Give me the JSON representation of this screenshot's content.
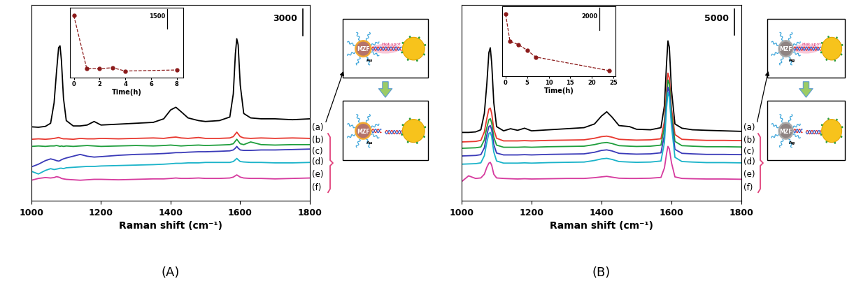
{
  "chart_data": [
    {
      "type": "line",
      "panel_label": "(A)",
      "x_label": "Raman shift (cm⁻¹)",
      "x": [
        1000,
        1020,
        1040,
        1055,
        1065,
        1072,
        1078,
        1082,
        1086,
        1092,
        1100,
        1120,
        1140,
        1160,
        1180,
        1200,
        1250,
        1300,
        1350,
        1380,
        1400,
        1415,
        1430,
        1450,
        1480,
        1500,
        1540,
        1570,
        1580,
        1586,
        1590,
        1594,
        1600,
        1610,
        1630,
        1660,
        1700,
        1750,
        1800
      ],
      "xlim": [
        1000,
        1800
      ],
      "xticks": [
        1000,
        1200,
        1400,
        1600,
        1800
      ],
      "ylim": [
        0,
        22000
      ],
      "tick_labels": "x",
      "scale_bar": 3000,
      "series": [
        {
          "name": "(a)",
          "color": "#000000",
          "values": [
            8300,
            8250,
            8350,
            8700,
            11000,
            14500,
            17200,
            17400,
            15800,
            11500,
            9000,
            8400,
            8400,
            8500,
            8900,
            8500,
            8600,
            8700,
            8800,
            9200,
            10200,
            10500,
            10000,
            9300,
            9000,
            8900,
            9000,
            9400,
            12000,
            16500,
            18200,
            17500,
            13000,
            9800,
            9300,
            9200,
            9200,
            9100,
            9200
          ]
        },
        {
          "name": "(b)",
          "color": "#e8382f",
          "values": [
            6900,
            6950,
            6900,
            6950,
            7000,
            7050,
            7100,
            7050,
            7000,
            6950,
            6950,
            6900,
            7000,
            6950,
            6950,
            7000,
            6950,
            7000,
            7050,
            7000,
            7100,
            7150,
            7050,
            7000,
            7100,
            7000,
            7000,
            7050,
            7200,
            7500,
            7700,
            7500,
            7200,
            7050,
            7000,
            7050,
            7000,
            7050,
            7000
          ]
        },
        {
          "name": "(c)",
          "color": "#1e9e3c",
          "values": [
            6100,
            6150,
            6100,
            6150,
            6150,
            6200,
            6150,
            6100,
            6150,
            6100,
            6150,
            6100,
            6150,
            6200,
            6150,
            6100,
            6150,
            6200,
            6150,
            6200,
            6250,
            6200,
            6150,
            6200,
            6250,
            6200,
            6250,
            6300,
            6400,
            6700,
            6900,
            6700,
            6400,
            6300,
            6600,
            6300,
            6250,
            6300,
            6300
          ]
        },
        {
          "name": "(d)",
          "color": "#3a3ab8",
          "values": [
            3800,
            4100,
            4500,
            4700,
            4600,
            4500,
            4450,
            4500,
            4600,
            4700,
            4800,
            5000,
            5200,
            5000,
            4900,
            4950,
            5100,
            5200,
            5250,
            5300,
            5350,
            5400,
            5400,
            5450,
            5500,
            5500,
            5550,
            5600,
            5700,
            5900,
            6100,
            5900,
            5700,
            5650,
            5650,
            5700,
            5700,
            5750,
            5800
          ]
        },
        {
          "name": "(e)",
          "color": "#1ab3c9",
          "values": [
            3300,
            3000,
            3400,
            3600,
            3500,
            3550,
            3600,
            3650,
            3650,
            3600,
            3700,
            3750,
            3800,
            3850,
            3850,
            3900,
            3950,
            4000,
            4050,
            4100,
            4150,
            4200,
            4200,
            4250,
            4250,
            4300,
            4300,
            4300,
            4400,
            4600,
            4750,
            4600,
            4400,
            4350,
            4300,
            4300,
            4250,
            4250,
            4300
          ]
        },
        {
          "name": "(f)",
          "color": "#d63a9e",
          "values": [
            2300,
            2500,
            2600,
            2550,
            2600,
            2700,
            2650,
            2600,
            2500,
            2450,
            2400,
            2350,
            2300,
            2350,
            2400,
            2400,
            2350,
            2400,
            2450,
            2450,
            2500,
            2550,
            2500,
            2500,
            2550,
            2500,
            2500,
            2550,
            2650,
            2800,
            2900,
            2800,
            2650,
            2550,
            2500,
            2500,
            2450,
            2500,
            2550
          ]
        }
      ],
      "inset": {
        "type": "line",
        "x_label": "Time(h)",
        "x": [
          0,
          1,
          2,
          3,
          4,
          8
        ],
        "values": [
          4300,
          300,
          280,
          350,
          100,
          180
        ],
        "color": "#8b1a1a",
        "marker": "o",
        "line_style": "dashed",
        "xlim": [
          -0.3,
          8.5
        ],
        "xticks": [
          0,
          2,
          4,
          6,
          8
        ],
        "ylim": [
          -400,
          4900
        ],
        "tick_labels": "x",
        "scale_bar": 1500
      },
      "schematic": {
        "core": "MZF",
        "shell": "Au",
        "hot_spot": "Hot spot"
      }
    },
    {
      "type": "line",
      "panel_label": "(B)",
      "x_label": "Raman shift (cm⁻¹)",
      "x": [
        1000,
        1020,
        1040,
        1055,
        1065,
        1072,
        1078,
        1082,
        1086,
        1092,
        1100,
        1120,
        1140,
        1160,
        1180,
        1200,
        1250,
        1300,
        1350,
        1380,
        1400,
        1415,
        1430,
        1450,
        1480,
        1500,
        1540,
        1570,
        1580,
        1586,
        1590,
        1594,
        1600,
        1610,
        1630,
        1660,
        1700,
        1750,
        1800
      ],
      "xlim": [
        1000,
        1800
      ],
      "xticks": [
        1000,
        1200,
        1400,
        1600,
        1800
      ],
      "ylim": [
        0,
        37000
      ],
      "tick_labels": "x",
      "scale_bar": 5000,
      "series": [
        {
          "name": "(a)",
          "color": "#000000",
          "values": [
            12900,
            12900,
            13000,
            13400,
            16500,
            22000,
            28000,
            28900,
            26000,
            18500,
            14000,
            13200,
            13600,
            13300,
            13700,
            13200,
            13400,
            13600,
            13800,
            14500,
            16000,
            16800,
            15800,
            14200,
            14000,
            13500,
            13400,
            13800,
            18000,
            26000,
            30200,
            29000,
            21000,
            14500,
            13700,
            13400,
            13300,
            13200,
            13100
          ]
        },
        {
          "name": "(b)",
          "color": "#e8382f",
          "values": [
            11100,
            11150,
            11200,
            11400,
            13000,
            15500,
            17300,
            17500,
            16500,
            13500,
            11800,
            11300,
            11300,
            11300,
            11350,
            11300,
            11400,
            11450,
            11500,
            11800,
            12100,
            12200,
            12000,
            11600,
            11500,
            11450,
            11500,
            11700,
            15000,
            21000,
            24100,
            23200,
            17500,
            12500,
            11600,
            11500,
            11400,
            11400,
            11350
          ]
        },
        {
          "name": "(c)",
          "color": "#1e9e3c",
          "values": [
            9900,
            9950,
            10000,
            10150,
            11500,
            13800,
            15300,
            15500,
            14700,
            12000,
            10500,
            10100,
            10100,
            10100,
            10150,
            10100,
            10200,
            10250,
            10300,
            10600,
            10900,
            11000,
            10800,
            10400,
            10300,
            10250,
            10300,
            10500,
            14000,
            19800,
            22800,
            22000,
            16500,
            11200,
            10400,
            10300,
            10200,
            10200,
            10150
          ]
        },
        {
          "name": "(d)",
          "color": "#3a3ab8",
          "values": [
            8450,
            8500,
            8550,
            8700,
            10000,
            12400,
            14000,
            14200,
            13400,
            10600,
            9000,
            8650,
            8650,
            8650,
            8700,
            8650,
            8750,
            8800,
            8850,
            9150,
            9500,
            9600,
            9400,
            8950,
            8850,
            8800,
            8850,
            9050,
            12500,
            18500,
            21450,
            20600,
            15200,
            9700,
            8950,
            8850,
            8750,
            8750,
            8700
          ]
        },
        {
          "name": "(e)",
          "color": "#1ab3c9",
          "values": [
            6900,
            6950,
            7000,
            7150,
            8500,
            11000,
            12700,
            12900,
            12100,
            9200,
            7500,
            7100,
            7100,
            7100,
            7150,
            7100,
            7200,
            7250,
            7300,
            7600,
            7900,
            8000,
            7800,
            7400,
            7300,
            7250,
            7300,
            7500,
            11000,
            17500,
            20500,
            19600,
            14200,
            8200,
            7400,
            7300,
            7200,
            7200,
            7150
          ]
        },
        {
          "name": "(f)",
          "color": "#d63a9e",
          "values": [
            3600,
            4700,
            4200,
            4300,
            5000,
            6300,
            7100,
            7240,
            6700,
            5000,
            4300,
            4200,
            4150,
            4100,
            4150,
            4100,
            4150,
            4200,
            4200,
            4350,
            4500,
            4600,
            4450,
            4250,
            4200,
            4200,
            4250,
            4400,
            6200,
            8900,
            10260,
            9800,
            7200,
            4500,
            4200,
            4150,
            4100,
            4100,
            4050
          ]
        }
      ],
      "inset": {
        "type": "line",
        "x_label": "Time(h)",
        "x": [
          0,
          1,
          3,
          5,
          7,
          24
        ],
        "values": [
          5500,
          3100,
          2800,
          2300,
          1700,
          500
        ],
        "color": "#8b1a1a",
        "marker": "o",
        "line_style": "dashed",
        "xlim": [
          -0.8,
          25.5
        ],
        "xticks": [
          0,
          5,
          10,
          15,
          20,
          25
        ],
        "ylim": [
          0,
          6200
        ],
        "tick_labels": "x",
        "scale_bar": 2000
      },
      "schematic": {
        "core": "MZF",
        "shell": "Ag",
        "hot_spot": "Hot spot"
      }
    }
  ]
}
